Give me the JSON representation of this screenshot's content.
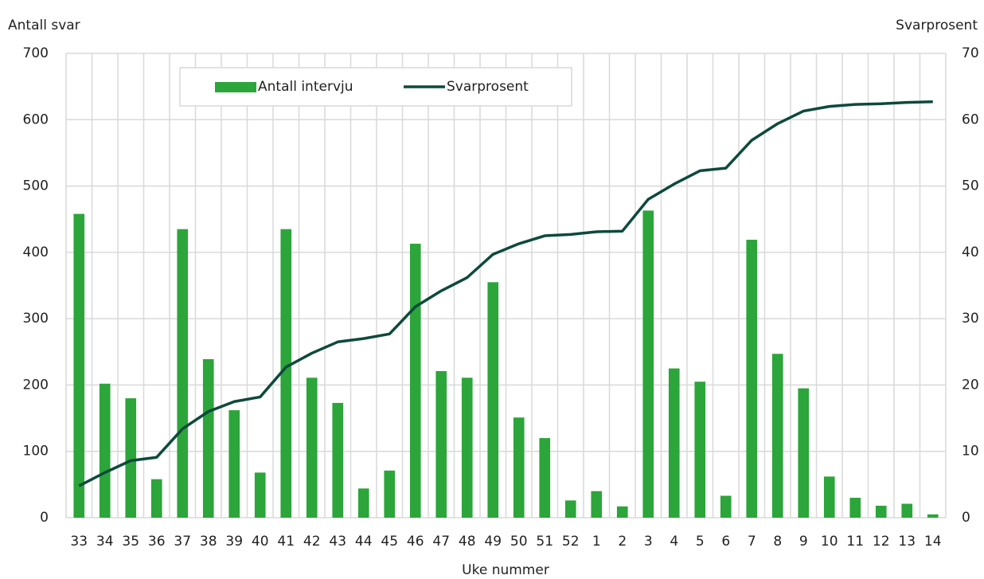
{
  "chart_data": {
    "type": "bar_line",
    "y_label": "Antall svar",
    "y2_label": "Svarprosent",
    "x_label": "Uke nummer",
    "categories": [
      "33",
      "34",
      "35",
      "36",
      "37",
      "38",
      "39",
      "40",
      "41",
      "42",
      "43",
      "44",
      "45",
      "46",
      "47",
      "48",
      "49",
      "50",
      "51",
      "52",
      "1",
      "2",
      "3",
      "4",
      "5",
      "6",
      "7",
      "8",
      "9",
      "10",
      "11",
      "12",
      "13",
      "14"
    ],
    "series": [
      {
        "name": "Antall intervju",
        "type": "bar",
        "color": "#2ca53a",
        "values": [
          458,
          202,
          180,
          58,
          435,
          239,
          162,
          68,
          435,
          211,
          173,
          44,
          71,
          413,
          221,
          211,
          355,
          151,
          120,
          26,
          40,
          17,
          463,
          225,
          205,
          33,
          419,
          247,
          195,
          62,
          30,
          18,
          21,
          5
        ]
      },
      {
        "name": "Svarprosent",
        "type": "line",
        "axis": "y2",
        "color": "#0d4a3c",
        "values": [
          4.8,
          6.8,
          8.6,
          9.1,
          13.4,
          16.0,
          17.5,
          18.2,
          22.7,
          24.8,
          26.5,
          27.0,
          27.7,
          31.8,
          34.2,
          36.2,
          39.7,
          41.3,
          42.5,
          42.7,
          43.1,
          43.2,
          48.0,
          50.3,
          52.3,
          52.7,
          56.9,
          59.4,
          61.3,
          62.0,
          62.3,
          62.4,
          62.6,
          62.7
        ]
      }
    ],
    "ylim": [
      0,
      700
    ],
    "yticks": [
      0,
      100,
      200,
      300,
      400,
      500,
      600,
      700
    ],
    "y2lim": [
      0,
      70
    ],
    "y2ticks": [
      0,
      10,
      20,
      30,
      40,
      50,
      60,
      70
    ],
    "grid": true,
    "legend": "top"
  }
}
